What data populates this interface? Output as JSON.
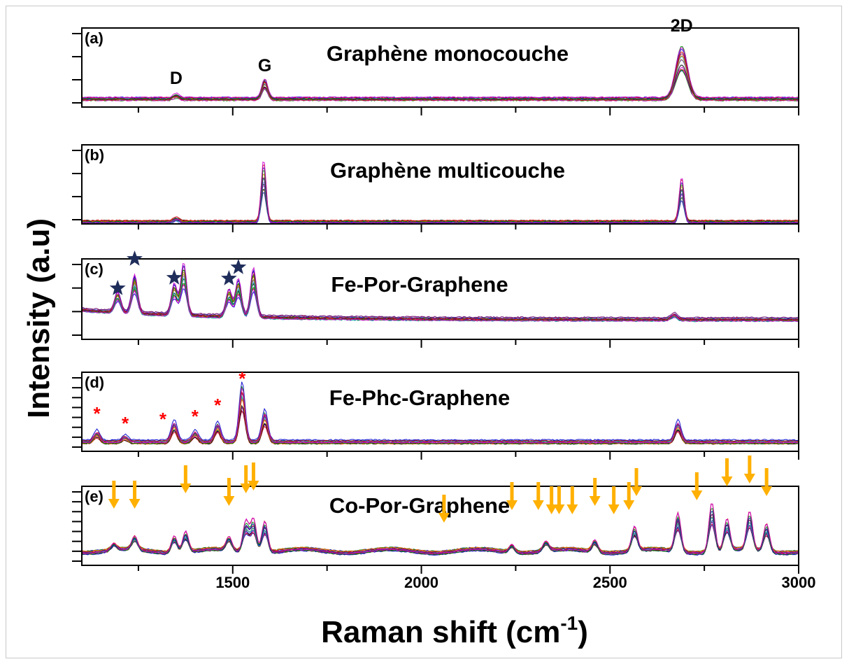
{
  "chart_data": {
    "type": "line",
    "xlabel": "Raman shift (cm",
    "xlabel_superscript": "-1",
    "xlabel_suffix": ")",
    "ylabel": "Intensity (a.u)",
    "xlim": [
      1100,
      3000
    ],
    "xticks": [
      1500,
      2000,
      2500,
      3000
    ],
    "grid": false,
    "series_colors": [
      "#0000cc",
      "#cc0000",
      "#008800",
      "#cc00cc",
      "#000000",
      "#6666ff",
      "#996633",
      "#00aaaa",
      "#ff6600",
      "#660066"
    ],
    "panels": [
      {
        "letter": "(a)",
        "title": "Graphène monocouche",
        "peaks": [
          {
            "label": "D",
            "x": 1350,
            "height": 0.06
          },
          {
            "label": "G",
            "x": 1585,
            "height": 0.28
          },
          {
            "label": "2D",
            "x": 2690,
            "height": 0.75
          }
        ],
        "baseline": 0.1
      },
      {
        "letter": "(b)",
        "title": "Graphène multicouche",
        "peaks": [
          {
            "x": 1350,
            "height": 0.05
          },
          {
            "x": 1582,
            "height": 0.85
          },
          {
            "x": 2690,
            "height": 0.62
          }
        ],
        "baseline": 0.02
      },
      {
        "letter": "(c)",
        "title": "Fe-Por-Graphene",
        "star_marker_x": [
          1195,
          1240,
          1345,
          1490,
          1515
        ],
        "peaks": [
          {
            "x": 1195,
            "height": 0.3
          },
          {
            "x": 1240,
            "height": 0.55
          },
          {
            "x": 1345,
            "height": 0.45
          },
          {
            "x": 1370,
            "height": 0.75
          },
          {
            "x": 1490,
            "height": 0.4
          },
          {
            "x": 1515,
            "height": 0.55
          },
          {
            "x": 1555,
            "height": 0.7
          },
          {
            "x": 2670,
            "height": 0.08
          }
        ],
        "baseline": 0.25
      },
      {
        "letter": "(d)",
        "title": "Fe-Phc-Graphene",
        "asterisk_marker_x": [
          1140,
          1215,
          1315,
          1400,
          1460,
          1525
        ],
        "peaks": [
          {
            "x": 1140,
            "height": 0.15
          },
          {
            "x": 1215,
            "height": 0.08
          },
          {
            "x": 1345,
            "height": 0.3
          },
          {
            "x": 1400,
            "height": 0.15
          },
          {
            "x": 1460,
            "height": 0.28
          },
          {
            "x": 1525,
            "height": 0.85
          },
          {
            "x": 1585,
            "height": 0.45
          },
          {
            "x": 2680,
            "height": 0.3
          }
        ],
        "baseline": 0.12
      },
      {
        "letter": "(e)",
        "title": "Co-Por-Graphene",
        "arrow_marker_x": [
          1185,
          1240,
          1375,
          1490,
          1535,
          1555,
          2060,
          2240,
          2310,
          2345,
          2365,
          2400,
          2460,
          2510,
          2550,
          2570,
          2730,
          2810,
          2870,
          2915
        ],
        "peaks": [
          {
            "x": 1185,
            "height": 0.1
          },
          {
            "x": 1240,
            "height": 0.2
          },
          {
            "x": 1345,
            "height": 0.25
          },
          {
            "x": 1375,
            "height": 0.3
          },
          {
            "x": 1490,
            "height": 0.2
          },
          {
            "x": 1535,
            "height": 0.45
          },
          {
            "x": 1555,
            "height": 0.48
          },
          {
            "x": 1585,
            "height": 0.45
          },
          {
            "x": 2240,
            "height": 0.12
          },
          {
            "x": 2330,
            "height": 0.15
          },
          {
            "x": 2460,
            "height": 0.18
          },
          {
            "x": 2565,
            "height": 0.35
          },
          {
            "x": 2680,
            "height": 0.55
          },
          {
            "x": 2770,
            "height": 0.7
          },
          {
            "x": 2810,
            "height": 0.45
          },
          {
            "x": 2870,
            "height": 0.55
          },
          {
            "x": 2915,
            "height": 0.4
          }
        ],
        "baseline": 0.18
      }
    ],
    "marker_colors": {
      "star": "#1f2d5a",
      "asterisk": "#ff0000",
      "arrow": "#ffb000"
    }
  }
}
